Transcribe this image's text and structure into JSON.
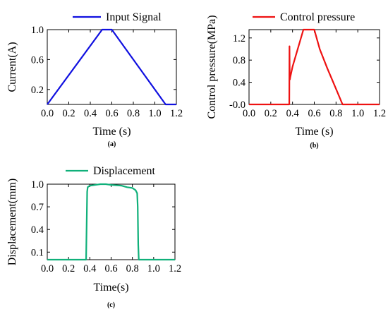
{
  "chart_data": [
    {
      "id": "a",
      "type": "line",
      "caption": "(a)",
      "xlabel": "Time (s)",
      "ylabel": "Current(A)",
      "xlim": [
        0,
        1.2
      ],
      "ylim": [
        0,
        1.0
      ],
      "xticks": [
        0.0,
        0.2,
        0.4,
        0.6,
        0.8,
        1.0,
        1.2
      ],
      "xtick_labels": [
        "0.0",
        "0.2",
        "0.4",
        "0.6",
        "0.8",
        "1.0",
        "1.2"
      ],
      "yticks": [
        0.2,
        0.6,
        1.0
      ],
      "ytick_labels": [
        "0.2",
        "0.6",
        "1.0"
      ],
      "grid": false,
      "legend_position": "top",
      "series": [
        {
          "name": "Input Signal",
          "color": "#1010e0",
          "x": [
            0.0,
            0.51,
            0.6,
            1.1,
            1.2
          ],
          "y": [
            0.0,
            1.0,
            1.0,
            0.0,
            0.0
          ]
        }
      ]
    },
    {
      "id": "b",
      "type": "line",
      "caption": "(b)",
      "xlabel": "Time (s)",
      "ylabel": "Control pressure(MPa)",
      "xlim": [
        0,
        1.2
      ],
      "ylim": [
        0,
        1.35
      ],
      "xticks": [
        0.0,
        0.2,
        0.4,
        0.6,
        0.8,
        1.0,
        1.2
      ],
      "xtick_labels": [
        "0.0",
        "0.2",
        "0.4",
        "0.6",
        "0.8",
        "1.0",
        "1.2"
      ],
      "yticks": [
        0.0,
        0.4,
        0.8,
        1.2
      ],
      "ytick_labels": [
        "-0.0",
        "0.4",
        "0.8",
        "1.2"
      ],
      "grid": false,
      "legend_position": "top",
      "series": [
        {
          "name": "Control pressure",
          "color": "#ee1111",
          "x": [
            0.0,
            0.37,
            0.372,
            0.374,
            0.376,
            0.378,
            0.4,
            0.5,
            0.52,
            0.6,
            0.65,
            0.72,
            0.77,
            0.86,
            1.2
          ],
          "y": [
            0.0,
            0.0,
            1.05,
            0.5,
            0.45,
            0.48,
            0.68,
            1.35,
            1.35,
            1.35,
            1.0,
            0.65,
            0.42,
            0.0,
            0.0
          ]
        }
      ]
    },
    {
      "id": "c",
      "type": "line",
      "caption": "(c)",
      "xlabel": "Time(s)",
      "ylabel": "Displacement(mm)",
      "xlim": [
        0,
        1.2
      ],
      "ylim": [
        0,
        1.0
      ],
      "xticks": [
        0.0,
        0.2,
        0.4,
        0.6,
        0.8,
        1.0,
        1.2
      ],
      "xtick_labels": [
        "0.0",
        "0.2",
        "0.4",
        "0.6",
        "0.8",
        "1.0",
        "1.2"
      ],
      "yticks": [
        0.1,
        0.4,
        0.7,
        1.0
      ],
      "ytick_labels": [
        "0.1",
        "0.4",
        "0.7",
        "1.0"
      ],
      "grid": false,
      "legend_position": "top",
      "series": [
        {
          "name": "Displacement",
          "color": "#10b07a",
          "x": [
            0.0,
            0.365,
            0.375,
            0.38,
            0.4,
            0.45,
            0.5,
            0.55,
            0.6,
            0.7,
            0.75,
            0.8,
            0.83,
            0.845,
            0.85,
            0.855,
            0.86,
            1.2
          ],
          "y": [
            0.0,
            0.0,
            0.9,
            0.96,
            0.98,
            0.99,
            1.0,
            1.0,
            0.99,
            0.98,
            0.96,
            0.95,
            0.92,
            0.88,
            0.7,
            0.2,
            0.0,
            0.0
          ]
        }
      ]
    }
  ]
}
